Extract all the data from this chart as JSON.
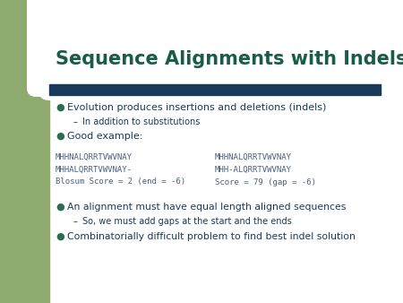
{
  "title": "Sequence Alignments with Indels",
  "title_color": "#1a5c4a",
  "title_fontsize": 15,
  "bg_color": "#ffffff",
  "left_bar_color": "#8faa6e",
  "header_bar_color": "#1a3a5c",
  "bullet_color": "#2e6b50",
  "text_color": "#1a3a5c",
  "mono_color": "#4a6080",
  "bullet1": "Evolution produces insertions and deletions (indels)",
  "sub1": "In addition to substitutions",
  "bullet2": "Good example:",
  "seq_left1": "MHHNALQRRTVWVNAY",
  "seq_left2": "MHHALQRRTVWVNAY-",
  "seq_left3": "Blosum Score = 2 (end = -6)",
  "seq_right1": "MHHNALQRRTVWVNAY",
  "seq_right2": "MHH-ALQRRTVWVNAY",
  "seq_right3": "Score = 79 (gap = -6)",
  "bullet3": "An alignment must have equal length aligned sequences",
  "sub3": "So, we must add gaps at the start and the ends",
  "bullet4": "Combinatorially difficult problem to find best indel solution"
}
